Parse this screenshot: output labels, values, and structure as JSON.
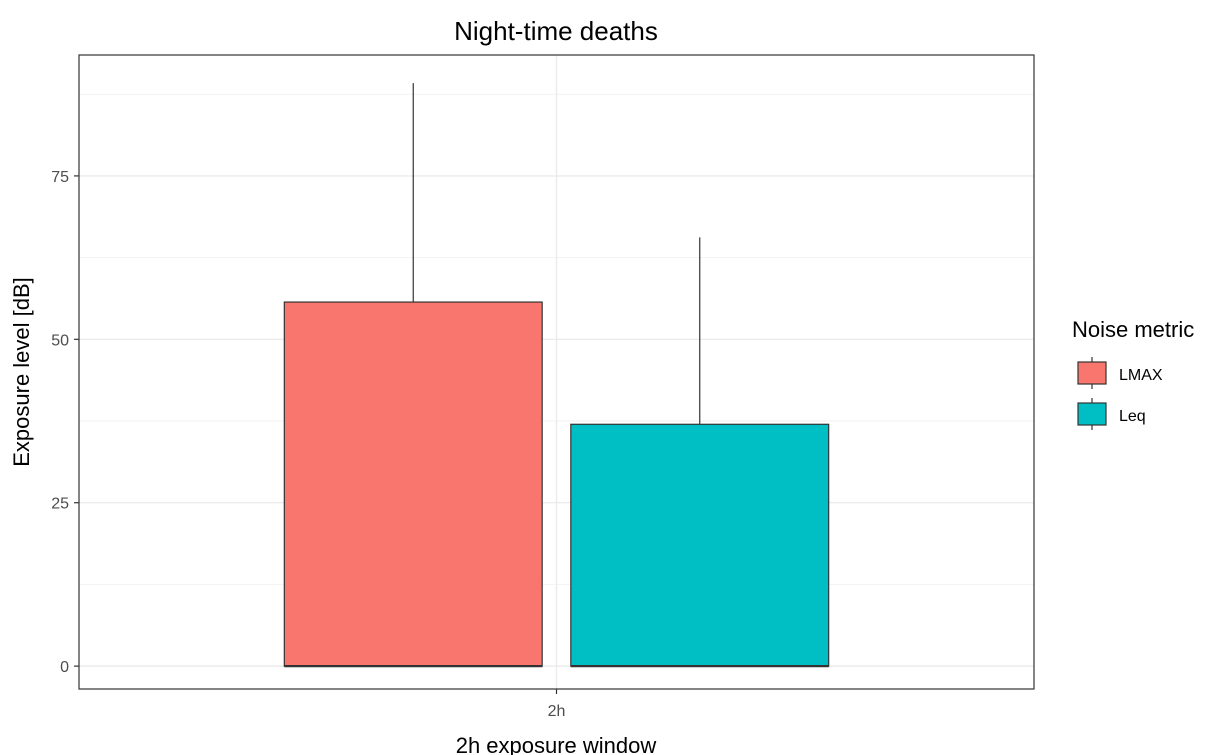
{
  "chart_data": {
    "type": "bar",
    "title": "Night-time deaths",
    "xlabel": "2h exposure window",
    "ylabel": "Exposure level [dB]",
    "categories": [
      "2h"
    ],
    "ylim": [
      -3.5,
      93.5
    ],
    "yticks": [
      0,
      25,
      50,
      75
    ],
    "grid": true,
    "legend": {
      "title": "Noise metric",
      "placement": "right"
    },
    "series": [
      {
        "name": "LMAX",
        "color": "#F8766D",
        "values": [
          55.7
        ],
        "error_upper": [
          89.2
        ]
      },
      {
        "name": "Leq",
        "color": "#00BFC4",
        "values": [
          37.0
        ],
        "error_upper": [
          65.6
        ]
      }
    ]
  }
}
